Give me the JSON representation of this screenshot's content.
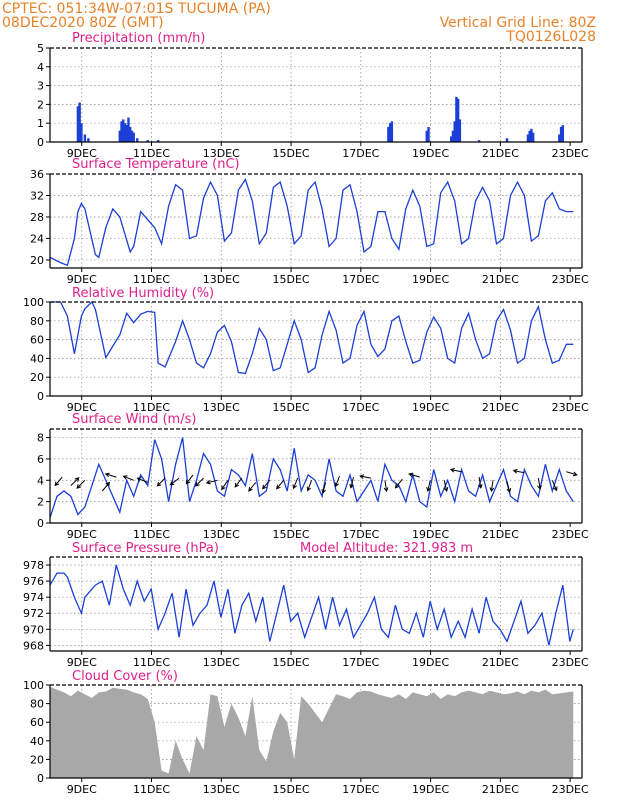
{
  "header": {
    "line1_left": "CPTEC:    051:34W-07:01S   TUCUMA (PA)",
    "line2_left": "08DEC2020 80Z (GMT)",
    "line1_right": "Vertical Grid Line: 80Z",
    "line2_right": "TQ0126L028"
  },
  "colors": {
    "series": "#1c3fd6",
    "cloud": "#a8a8a8",
    "title": "#e0208a",
    "header": "#e8822a"
  },
  "x_axis_ticks": [
    "9DEC",
    "11DEC",
    "13DEC",
    "15DEC",
    "17DEC",
    "19DEC",
    "21DEC",
    "23DEC"
  ],
  "chart_data": [
    {
      "type": "bar",
      "title": "Precipitation (mm/h)",
      "ylim": [
        0,
        5
      ],
      "yticks": [
        0,
        1,
        2,
        3,
        4,
        5
      ],
      "x_unit": "days since 08DEC2020",
      "bars": [
        [
          0.8,
          1.9
        ],
        [
          0.85,
          2.1
        ],
        [
          0.9,
          1.0
        ],
        [
          1.0,
          0.4
        ],
        [
          1.1,
          0.2
        ],
        [
          2.0,
          0.6
        ],
        [
          2.05,
          1.1
        ],
        [
          2.1,
          1.2
        ],
        [
          2.15,
          1.0
        ],
        [
          2.2,
          0.9
        ],
        [
          2.25,
          1.3
        ],
        [
          2.3,
          0.8
        ],
        [
          2.35,
          0.6
        ],
        [
          2.4,
          0.5
        ],
        [
          2.5,
          0.2
        ],
        [
          2.8,
          0.1
        ],
        [
          3.1,
          0.1
        ],
        [
          9.7,
          0.8
        ],
        [
          9.75,
          1.0
        ],
        [
          9.8,
          1.1
        ],
        [
          10.8,
          0.6
        ],
        [
          10.85,
          0.8
        ],
        [
          11.5,
          0.3
        ],
        [
          11.55,
          0.6
        ],
        [
          11.6,
          1.1
        ],
        [
          11.65,
          2.4
        ],
        [
          11.7,
          2.3
        ],
        [
          11.75,
          1.2
        ],
        [
          12.3,
          0.1
        ],
        [
          13.1,
          0.2
        ],
        [
          13.7,
          0.4
        ],
        [
          13.75,
          0.6
        ],
        [
          13.8,
          0.7
        ],
        [
          13.85,
          0.5
        ],
        [
          14.6,
          0.4
        ],
        [
          14.65,
          0.8
        ],
        [
          14.7,
          0.9
        ]
      ]
    },
    {
      "type": "line",
      "title": "Surface Temperature (nC)",
      "ylim": [
        18.5,
        36
      ],
      "yticks": [
        20,
        24,
        28,
        32,
        36
      ],
      "x": [
        0,
        0.3,
        0.5,
        0.7,
        0.8,
        0.9,
        1.0,
        1.3,
        1.4,
        1.6,
        1.8,
        2.0,
        2.3,
        2.4,
        2.6,
        2.8,
        3.0,
        3.2,
        3.4,
        3.6,
        3.8,
        4.0,
        4.2,
        4.4,
        4.6,
        4.8,
        5.0,
        5.2,
        5.4,
        5.6,
        5.8,
        6.0,
        6.2,
        6.4,
        6.6,
        6.8,
        7.0,
        7.2,
        7.4,
        7.6,
        7.8,
        8.0,
        8.2,
        8.4,
        8.6,
        8.8,
        9.0,
        9.2,
        9.4,
        9.6,
        9.8,
        10.0,
        10.2,
        10.4,
        10.6,
        10.8,
        11.0,
        11.2,
        11.4,
        11.6,
        11.8,
        12.0,
        12.2,
        12.4,
        12.6,
        12.8,
        13.0,
        13.2,
        13.4,
        13.6,
        13.8,
        14.0,
        14.2,
        14.4,
        14.6,
        14.8,
        15.0
      ],
      "y": [
        20.5,
        19.5,
        19.0,
        24.0,
        29.0,
        30.5,
        29.5,
        21.0,
        20.5,
        26.0,
        29.5,
        28.0,
        21.5,
        22.5,
        29.0,
        27.5,
        26.0,
        23.0,
        30.0,
        34.0,
        33.0,
        24.0,
        24.5,
        31.5,
        34.5,
        32.0,
        23.5,
        25.0,
        33.0,
        35.0,
        31.0,
        23.0,
        25.0,
        33.5,
        34.5,
        30.0,
        23.0,
        24.5,
        33.0,
        34.5,
        29.5,
        22.5,
        24.0,
        33.0,
        34.0,
        29.0,
        21.5,
        22.5,
        29.0,
        29.0,
        24.0,
        22.0,
        29.5,
        33.0,
        30.0,
        22.5,
        23.0,
        32.5,
        34.5,
        31.0,
        23.0,
        24.0,
        31.0,
        33.5,
        31.0,
        23.0,
        24.0,
        32.0,
        34.5,
        32.0,
        23.5,
        24.5,
        31.0,
        32.5,
        29.5,
        29.0,
        29.0
      ]
    },
    {
      "type": "line",
      "title": "Relative Humidity (%)",
      "ylim": [
        0,
        100
      ],
      "yticks": [
        0,
        20,
        40,
        60,
        80,
        100
      ],
      "x": [
        0,
        0.3,
        0.5,
        0.7,
        0.9,
        1.0,
        1.2,
        1.3,
        1.6,
        2.0,
        2.2,
        2.4,
        2.6,
        2.8,
        3.0,
        3.1,
        3.3,
        3.6,
        3.8,
        4.0,
        4.2,
        4.4,
        4.6,
        4.8,
        5.0,
        5.2,
        5.4,
        5.6,
        5.8,
        6.0,
        6.2,
        6.4,
        6.6,
        6.8,
        7.0,
        7.2,
        7.4,
        7.6,
        7.8,
        8.0,
        8.2,
        8.4,
        8.6,
        8.8,
        9.0,
        9.2,
        9.4,
        9.6,
        9.8,
        10.0,
        10.2,
        10.4,
        10.6,
        10.8,
        11.0,
        11.2,
        11.4,
        11.6,
        11.8,
        12.0,
        12.2,
        12.4,
        12.6,
        12.8,
        13.0,
        13.2,
        13.4,
        13.6,
        13.8,
        14.0,
        14.2,
        14.4,
        14.6,
        14.8,
        15.0
      ],
      "y": [
        100,
        100,
        85,
        45,
        85,
        93,
        100,
        92,
        41,
        65,
        88,
        78,
        87,
        90,
        89,
        35,
        31,
        58,
        80,
        60,
        35,
        30,
        45,
        68,
        75,
        58,
        25,
        24,
        45,
        72,
        60,
        27,
        30,
        55,
        80,
        60,
        25,
        30,
        65,
        90,
        70,
        35,
        40,
        75,
        90,
        55,
        42,
        50,
        80,
        85,
        58,
        35,
        38,
        68,
        84,
        72,
        40,
        35,
        72,
        88,
        60,
        40,
        45,
        80,
        92,
        70,
        35,
        40,
        80,
        95,
        60,
        35,
        38,
        55,
        55
      ]
    },
    {
      "type": "line",
      "title": "Surface Wind (m/s)",
      "ylim": [
        0,
        8.8
      ],
      "yticks": [
        0,
        2,
        4,
        6,
        8
      ],
      "x": [
        0,
        0.2,
        0.4,
        0.6,
        0.8,
        1.0,
        1.2,
        1.4,
        1.6,
        1.8,
        2.0,
        2.2,
        2.4,
        2.6,
        2.8,
        3.0,
        3.2,
        3.4,
        3.6,
        3.8,
        4.0,
        4.2,
        4.4,
        4.6,
        4.8,
        5.0,
        5.2,
        5.4,
        5.6,
        5.8,
        6.0,
        6.2,
        6.4,
        6.6,
        6.8,
        7.0,
        7.2,
        7.4,
        7.6,
        7.8,
        8.0,
        8.2,
        8.4,
        8.6,
        8.8,
        9.0,
        9.2,
        9.4,
        9.6,
        9.8,
        10.0,
        10.2,
        10.4,
        10.6,
        10.8,
        11.0,
        11.2,
        11.4,
        11.6,
        11.8,
        12.0,
        12.2,
        12.4,
        12.6,
        12.8,
        13.0,
        13.2,
        13.4,
        13.6,
        13.8,
        14.0,
        14.2,
        14.4,
        14.6,
        14.8,
        15.0
      ],
      "y": [
        0.5,
        2.5,
        3.0,
        2.5,
        0.8,
        1.5,
        3.5,
        5.5,
        4.0,
        2.5,
        1.0,
        4.0,
        2.5,
        4.5,
        3.5,
        7.8,
        6.0,
        2.0,
        5.5,
        8.0,
        2.0,
        4.0,
        6.5,
        5.5,
        3.0,
        2.5,
        5.0,
        4.5,
        3.5,
        6.5,
        2.5,
        3.0,
        6.0,
        5.0,
        3.0,
        7.0,
        3.0,
        4.5,
        4.0,
        2.5,
        6.0,
        3.0,
        2.5,
        4.5,
        2.0,
        3.0,
        4.0,
        2.0,
        5.5,
        4.0,
        3.5,
        2.0,
        4.5,
        2.0,
        1.5,
        5.0,
        2.5,
        4.0,
        2.0,
        5.0,
        3.0,
        2.5,
        4.5,
        2.0,
        3.5,
        5.0,
        2.5,
        2.0,
        5.0,
        3.5,
        2.5,
        5.5,
        3.0,
        5.0,
        3.0,
        2.0
      ],
      "arrows": [
        [
          0.35,
          4.3,
          -1,
          -1.2
        ],
        [
          0.6,
          3.5,
          1,
          1
        ],
        [
          1.0,
          4.0,
          -1,
          -1
        ],
        [
          1.5,
          3.0,
          1,
          1.2
        ],
        [
          1.9,
          4.3,
          -1,
          0.3
        ],
        [
          2.4,
          4.0,
          -1,
          0.4
        ],
        [
          2.8,
          3.8,
          -1,
          0.4
        ],
        [
          3.3,
          4.2,
          -1,
          -1
        ],
        [
          3.7,
          4.2,
          -1.3,
          -1
        ],
        [
          4.1,
          4.5,
          -1,
          -1.3
        ],
        [
          4.4,
          4.2,
          -1,
          -1
        ],
        [
          4.8,
          4.0,
          -1.2,
          -0.3
        ],
        [
          5.1,
          4.0,
          -0.8,
          -1.2
        ],
        [
          5.5,
          4.2,
          -1,
          -1.3
        ],
        [
          5.9,
          3.8,
          -1,
          -1.2
        ],
        [
          6.3,
          4.0,
          -1,
          -1.2
        ],
        [
          6.7,
          4.0,
          -1,
          -1.2
        ],
        [
          7.1,
          4.2,
          -0.5,
          -1.2
        ],
        [
          7.5,
          4.0,
          -0.5,
          -1.3
        ],
        [
          7.9,
          3.8,
          -0.3,
          -1.2
        ],
        [
          8.3,
          4.4,
          -0.5,
          -1.3
        ],
        [
          8.7,
          4.3,
          -0.3,
          -1.2
        ],
        [
          9.2,
          4.2,
          -1,
          0.2
        ],
        [
          9.6,
          4.0,
          0.2,
          -1.3
        ],
        [
          10.1,
          4.1,
          -0.8,
          -1
        ],
        [
          10.6,
          4.3,
          -1,
          0.3
        ],
        [
          10.9,
          4.0,
          -0.3,
          -1.3
        ],
        [
          11.3,
          4.0,
          0.3,
          -1.3
        ],
        [
          11.8,
          4.8,
          -1,
          0.2
        ],
        [
          12.3,
          4.3,
          0.2,
          -1.3
        ],
        [
          12.7,
          4.0,
          -0.2,
          -1.3
        ],
        [
          13.1,
          3.9,
          0.3,
          -1.2
        ],
        [
          13.6,
          4.7,
          -1,
          0.2
        ],
        [
          14.0,
          4.2,
          0.2,
          -1.3
        ],
        [
          14.4,
          4.0,
          0.5,
          -1.2
        ],
        [
          14.8,
          4.8,
          1,
          -0.3
        ]
      ]
    },
    {
      "type": "line",
      "title": "Surface Pressure (hPa)",
      "annotation": "Model Altitude: 321.983 m",
      "ylim": [
        967.3,
        979
      ],
      "yticks": [
        968,
        970,
        972,
        974,
        976,
        978
      ],
      "x": [
        0,
        0.2,
        0.4,
        0.5,
        0.7,
        0.9,
        1.0,
        1.3,
        1.5,
        1.7,
        1.9,
        2.1,
        2.3,
        2.5,
        2.7,
        2.9,
        3.1,
        3.3,
        3.5,
        3.7,
        3.9,
        4.1,
        4.3,
        4.5,
        4.7,
        4.9,
        5.1,
        5.3,
        5.5,
        5.7,
        5.9,
        6.1,
        6.3,
        6.5,
        6.7,
        6.9,
        7.1,
        7.3,
        7.5,
        7.7,
        7.9,
        8.1,
        8.3,
        8.5,
        8.7,
        8.9,
        9.1,
        9.3,
        9.5,
        9.7,
        9.9,
        10.1,
        10.3,
        10.5,
        10.7,
        10.9,
        11.1,
        11.3,
        11.5,
        11.7,
        11.9,
        12.1,
        12.3,
        12.5,
        12.7,
        12.9,
        13.1,
        13.3,
        13.5,
        13.7,
        13.9,
        14.1,
        14.3,
        14.5,
        14.7,
        14.9,
        15.0
      ],
      "y": [
        975.5,
        977,
        977,
        976.5,
        974,
        972,
        974,
        975.5,
        976,
        973,
        978,
        975,
        973,
        976,
        973.5,
        975,
        970,
        972,
        974.5,
        969,
        975,
        970.5,
        972,
        973,
        976,
        971.5,
        975,
        969.5,
        973,
        974.5,
        971,
        974,
        968.5,
        972,
        975.5,
        971,
        972,
        969,
        971.5,
        974,
        970,
        974,
        970.5,
        972.5,
        969,
        970.5,
        972,
        974,
        970,
        969,
        973,
        970,
        969.5,
        972,
        969,
        973.5,
        970,
        972.5,
        969,
        971,
        969,
        972.5,
        969.5,
        974,
        971,
        970,
        968.5,
        971,
        973.5,
        969.5,
        970.5,
        972,
        968,
        972,
        975.5,
        968.5,
        970
      ]
    },
    {
      "type": "area",
      "title": "Cloud Cover (%)",
      "ylim": [
        0,
        100
      ],
      "yticks": [
        0,
        20,
        40,
        60,
        80,
        100
      ],
      "x": [
        0,
        0.2,
        0.4,
        0.6,
        0.8,
        1.0,
        1.2,
        1.4,
        1.6,
        1.8,
        2.0,
        2.2,
        2.4,
        2.6,
        2.8,
        3.0,
        3.2,
        3.4,
        3.6,
        3.8,
        4.0,
        4.2,
        4.4,
        4.6,
        4.8,
        5.0,
        5.2,
        5.4,
        5.6,
        5.8,
        6.0,
        6.2,
        6.4,
        6.6,
        6.8,
        7.0,
        7.2,
        7.4,
        7.6,
        7.8,
        8.0,
        8.2,
        8.4,
        8.6,
        8.8,
        9.0,
        9.2,
        9.4,
        9.6,
        9.8,
        10.0,
        10.2,
        10.4,
        10.6,
        10.8,
        11.0,
        11.2,
        11.4,
        11.6,
        11.8,
        12.0,
        12.2,
        12.4,
        12.6,
        12.8,
        13.0,
        13.2,
        13.4,
        13.6,
        13.8,
        14.0,
        14.2,
        14.4,
        14.6,
        14.8,
        15.0
      ],
      "y": [
        98,
        95,
        92,
        88,
        94,
        90,
        86,
        92,
        93,
        97,
        96,
        95,
        92,
        90,
        85,
        60,
        8,
        5,
        40,
        20,
        5,
        45,
        30,
        90,
        88,
        55,
        80,
        65,
        45,
        88,
        30,
        18,
        50,
        70,
        60,
        20,
        88,
        80,
        70,
        60,
        75,
        90,
        88,
        85,
        92,
        94,
        93,
        90,
        88,
        86,
        90,
        85,
        92,
        90,
        88,
        92,
        85,
        90,
        88,
        92,
        94,
        92,
        90,
        94,
        92,
        90,
        91,
        93,
        90,
        94,
        92,
        95,
        90,
        91,
        92,
        93
      ]
    }
  ]
}
